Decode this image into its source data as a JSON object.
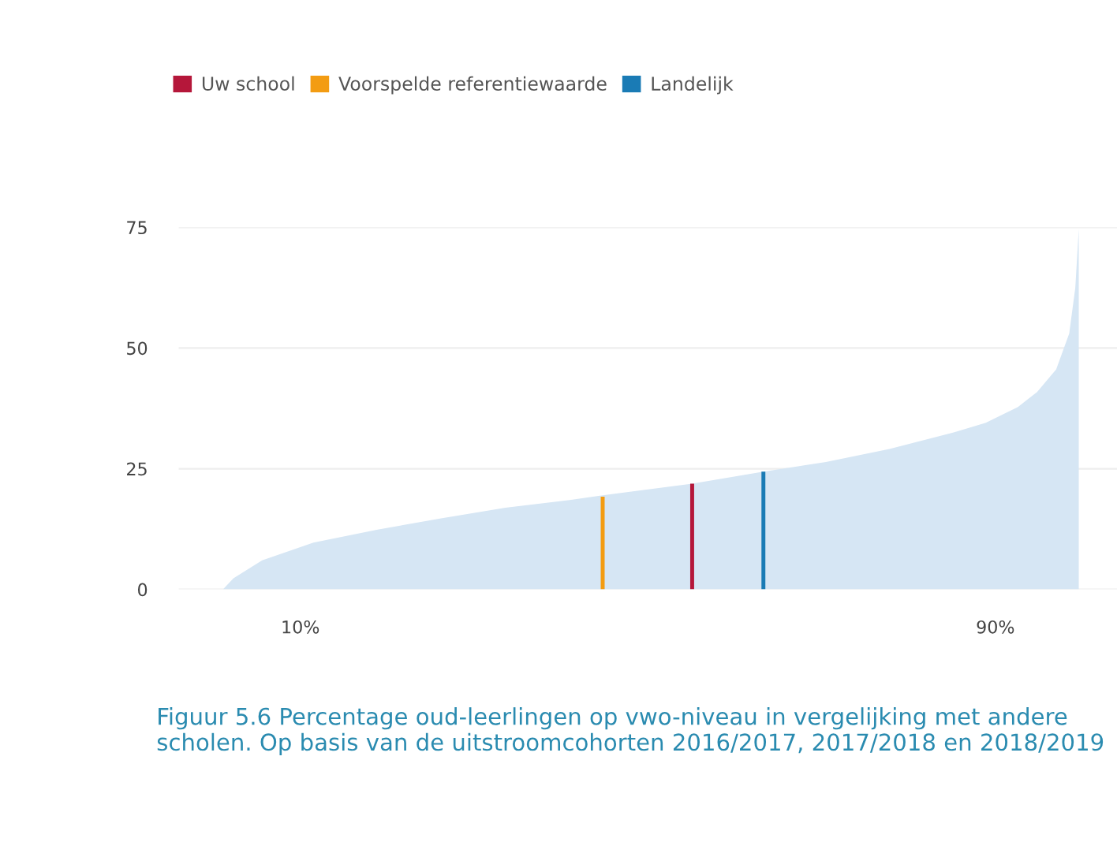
{
  "chart_data": {
    "type": "area",
    "xlim": [
      -4,
      104
    ],
    "ylim": [
      0,
      75
    ],
    "yticks": [
      0,
      25,
      50,
      75
    ],
    "xticks": [
      {
        "value": 10,
        "label": "10%"
      },
      {
        "value": 90,
        "label": "90%"
      }
    ],
    "grid": "y",
    "legend": "top left",
    "series": [
      {
        "color": "#d6e6f4",
        "x": [
          1.1,
          2.3,
          5.6,
          11.5,
          18.9,
          26.2,
          33.6,
          41,
          44.8,
          55.1,
          63.3,
          70.5,
          77.8,
          85.2,
          88.9,
          92.6,
          94.8,
          97,
          98.5,
          99.2,
          99.6
        ],
        "values": [
          0,
          2.3,
          6,
          9.7,
          12.4,
          14.7,
          16.9,
          18.5,
          19.5,
          21.9,
          24.4,
          26.4,
          29.1,
          32.5,
          34.5,
          37.8,
          40.9,
          45.6,
          53,
          62.5,
          74.7
        ]
      },
      {
        "type": "bar",
        "name": "Uw school",
        "color": "#b5173a",
        "x": [
          55.1
        ],
        "values": [
          21.9
        ]
      },
      {
        "type": "bar",
        "name": "Voorspelde referentiewaarde",
        "color": "#f39c12",
        "x": [
          44.8
        ],
        "values": [
          19.2
        ]
      },
      {
        "type": "bar",
        "name": "Landelijk",
        "color": "#1a7bb5",
        "x": [
          63.3
        ],
        "values": [
          24.4
        ]
      }
    ],
    "annotations": [
      "Figuur 5.6 Percentage oud-leerlingen op vwo-niveau in vergelijking met andere scholen. Op basis van de uitstroomcohorten 2016/2017, 2017/2018 en 2018/2019"
    ]
  }
}
